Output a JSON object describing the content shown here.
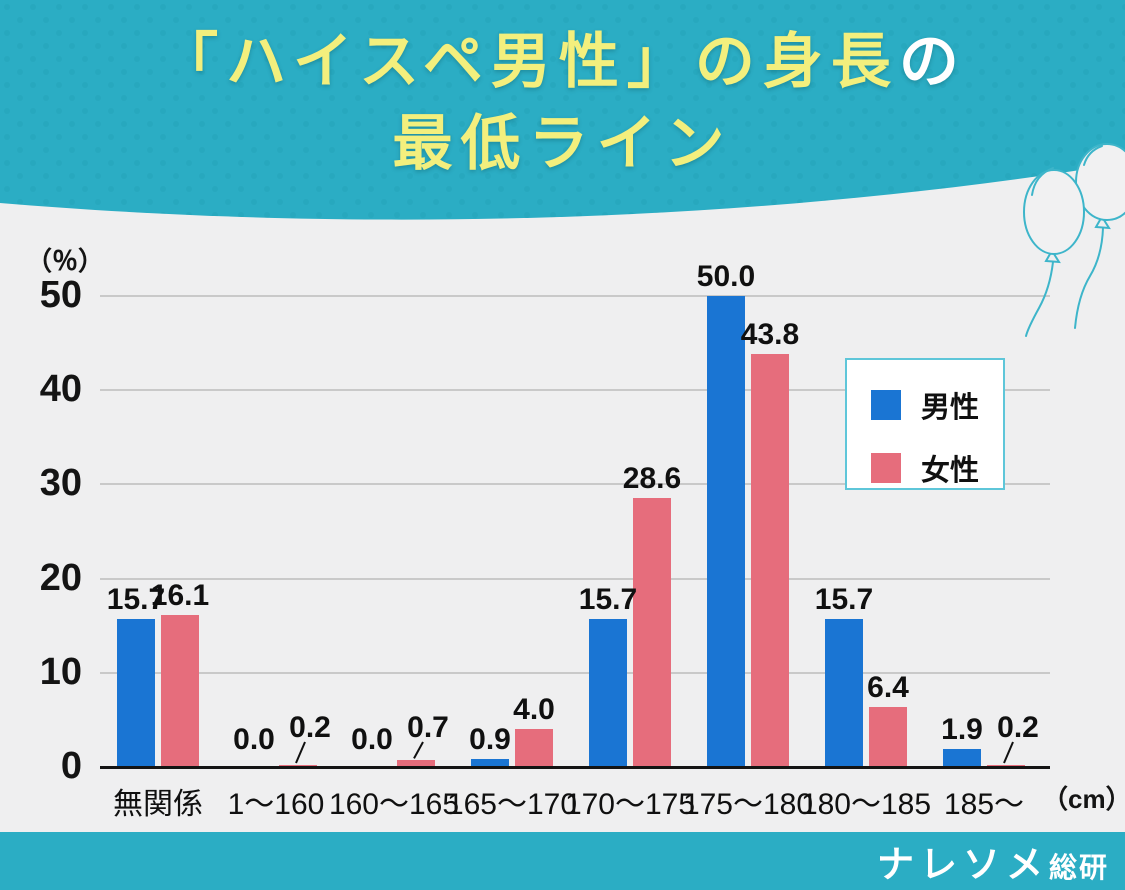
{
  "header": {
    "title_line1_main": "「ハイスペ男性」の身長",
    "title_line1_accent": "の",
    "title_line2": "最低ライン"
  },
  "footer": {
    "logo_main": "ナレソメ",
    "logo_sub": "総研"
  },
  "colors": {
    "teal": "#2badc4",
    "title_yellow": "#f3ef7d",
    "title_white": "#ffffff",
    "background": "#efeff0",
    "male": "#1a75d3",
    "female": "#e66d7c",
    "grid": "#c9c9c9",
    "axis": "#141414",
    "legend_border": "#5ec6d9",
    "balloon": "#3db5ca",
    "balloon_fill": "#f1f1f2"
  },
  "chart_data": {
    "type": "bar",
    "title": "「ハイスペ男性」の身長の最低ライン",
    "xlabel": "（cm）",
    "ylabel": "（％）",
    "categories": [
      "無関係",
      "1～160",
      "160～165",
      "165～170",
      "170～175",
      "175～180",
      "180～185",
      "185～"
    ],
    "series": [
      {
        "name": "男性",
        "color_key": "male",
        "values": [
          15.7,
          0.0,
          0.0,
          0.9,
          15.7,
          50.0,
          15.7,
          1.9
        ]
      },
      {
        "name": "女性",
        "color_key": "female",
        "values": [
          16.1,
          0.2,
          0.7,
          4.0,
          28.6,
          43.8,
          6.4,
          0.2
        ]
      }
    ],
    "yticks": [
      0,
      10,
      20,
      30,
      40,
      50
    ],
    "ylim": [
      0,
      50
    ],
    "grid": "horizontal",
    "legend_position": "upper right",
    "value_label_decimals": 1,
    "callouts": [
      {
        "category": "1～160",
        "series": "女性"
      },
      {
        "category": "160～165",
        "series": "女性"
      },
      {
        "category": "185～",
        "series": "女性"
      }
    ]
  }
}
